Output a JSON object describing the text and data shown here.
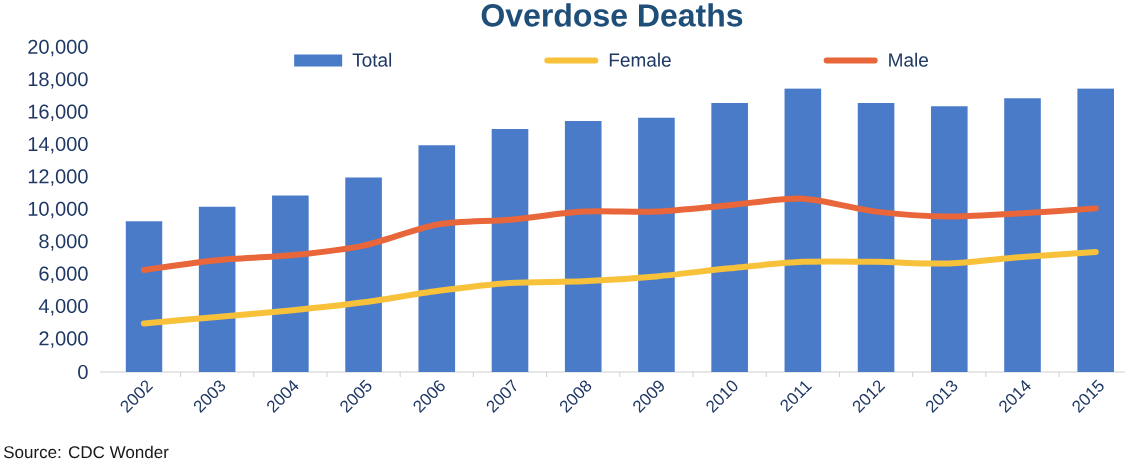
{
  "chart_data": {
    "type": "bar",
    "title": "Overdose Deaths",
    "categories": [
      "2002",
      "2003",
      "2004",
      "2005",
      "2006",
      "2007",
      "2008",
      "2009",
      "2010",
      "2011",
      "2012",
      "2013",
      "2014",
      "2015"
    ],
    "series": [
      {
        "name": "Total",
        "color": "#4a7bc8",
        "values": [
          9300,
          10200,
          10900,
          12000,
          14000,
          15000,
          15500,
          15700,
          16600,
          17500,
          16600,
          16400,
          16900,
          17500
        ]
      },
      {
        "name": "Female",
        "type": "line",
        "color": "#f8c13a",
        "values": [
          3000,
          3400,
          3800,
          4300,
          5000,
          5500,
          5600,
          5900,
          6400,
          6800,
          6800,
          6700,
          7100,
          7400
        ]
      },
      {
        "name": "Male",
        "type": "line",
        "color": "#e8663a",
        "values": [
          6300,
          6900,
          7200,
          7800,
          9100,
          9400,
          9900,
          9900,
          10300,
          10700,
          9900,
          9600,
          9800,
          10100
        ]
      }
    ],
    "ylim": [
      0,
      20000
    ],
    "yticks": [
      0,
      {
        "value": 2000,
        "label": "2,000"
      },
      {
        "value": 4000,
        "label": "4,000"
      },
      {
        "value": 6000,
        "label": "6,000"
      },
      {
        "value": 8000,
        "label": "8,000"
      },
      {
        "value": 10000,
        "label": "10,000"
      },
      {
        "value": 12000,
        "label": "12,000"
      },
      {
        "value": 14000,
        "label": "14,000"
      },
      {
        "value": 16000,
        "label": "16,000"
      },
      {
        "value": 18000,
        "label": "18,000"
      },
      {
        "value": 20000,
        "label": "20,000"
      }
    ],
    "grid": false,
    "legend": "top",
    "marker": "none",
    "line_style": "solid",
    "annotations": [
      "Source: CDC Wonder"
    ]
  }
}
